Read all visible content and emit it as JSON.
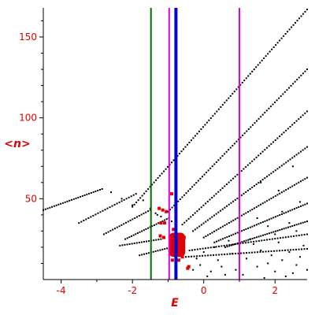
{
  "chart_data": {
    "type": "scatter",
    "xlabel": "E",
    "ylabel": "<n>",
    "xlim": [
      -4.5,
      2.9
    ],
    "ylim": [
      0,
      168
    ],
    "x_ticks": [
      -4,
      -2,
      0,
      2
    ],
    "x_tick_labels": [
      "-4",
      "-2",
      "0",
      "2"
    ],
    "y_ticks": [
      50,
      100,
      150
    ],
    "y_tick_labels": [
      "50",
      "100",
      "150"
    ],
    "grid": false,
    "colors": {
      "axis_text": "#e00000",
      "points": "#000000",
      "highlight": "#e00000",
      "line_green": "#007000",
      "line_magenta": "#e000e0",
      "line_blue": "#0000e0"
    },
    "vertical_lines": [
      {
        "x": -1.48,
        "color": "#007000",
        "width": 2
      },
      {
        "x": -0.97,
        "color": "#e000e0",
        "width": 2
      },
      {
        "x": -0.78,
        "color": "#0000e0",
        "width": 4
      },
      {
        "x": 1.0,
        "color": "#e000e0",
        "width": 2
      }
    ],
    "black_curves": [
      {
        "x0": -4.5,
        "y0": 43,
        "x1": -2.85,
        "y1": 56,
        "points": 28,
        "tail": [
          [
            -2.6,
            54
          ],
          [
            -2.3,
            50
          ],
          [
            -2.0,
            46
          ]
        ]
      },
      {
        "x0": -3.5,
        "y0": 35,
        "x1": -1.9,
        "y1": 53,
        "points": 25,
        "tail": [
          [
            -1.7,
            49
          ],
          [
            -1.5,
            44
          ],
          [
            -1.3,
            40
          ]
        ]
      },
      {
        "x0": -2.8,
        "y0": 28,
        "x1": -1.5,
        "y1": 43,
        "points": 22,
        "tail": [
          [
            -1.35,
            41
          ],
          [
            -1.2,
            39
          ]
        ]
      },
      {
        "x0": -2.2,
        "y0": 25,
        "x1": -0.98,
        "y1": 38,
        "points": 22,
        "tail": [
          [
            -0.9,
            36
          ],
          [
            -0.8,
            34
          ]
        ]
      },
      {
        "x0": -2.35,
        "y0": 21,
        "x1": -1.2,
        "y1": 25,
        "points": 18,
        "tail": []
      },
      {
        "x0": -1.8,
        "y0": 15,
        "x1": -0.9,
        "y1": 20,
        "points": 15,
        "tail": []
      },
      {
        "x0": -2.0,
        "y0": 45,
        "x1": 2.9,
        "y1": 167,
        "points": 90,
        "tail": []
      },
      {
        "x0": -1.0,
        "y0": 42,
        "x1": 2.9,
        "y1": 130,
        "points": 70,
        "tail": []
      },
      {
        "x0": -0.6,
        "y0": 34,
        "x1": 2.9,
        "y1": 104,
        "points": 60,
        "tail": []
      },
      {
        "x0": -0.3,
        "y0": 30,
        "x1": 2.9,
        "y1": 82,
        "points": 55,
        "tail": []
      },
      {
        "x0": 0.0,
        "y0": 26,
        "x1": 2.9,
        "y1": 63,
        "points": 50,
        "tail": []
      },
      {
        "x0": 0.3,
        "y0": 23,
        "x1": 2.9,
        "y1": 47,
        "points": 45,
        "tail": []
      },
      {
        "x0": 0.6,
        "y0": 20,
        "x1": 2.9,
        "y1": 36,
        "points": 40,
        "tail": []
      },
      {
        "x0": -0.4,
        "y0": 18,
        "x1": 2.9,
        "y1": 28,
        "points": 45,
        "tail": []
      },
      {
        "x0": -0.5,
        "y0": 14,
        "x1": 2.9,
        "y1": 19,
        "points": 45,
        "tail": []
      }
    ],
    "black_scatter": [
      [
        1.8,
        10
      ],
      [
        2.2,
        12
      ],
      [
        2.6,
        9
      ],
      [
        2.0,
        5
      ],
      [
        1.5,
        8
      ],
      [
        2.5,
        4
      ],
      [
        1.2,
        13
      ],
      [
        2.7,
        14
      ],
      [
        1.9,
        15
      ],
      [
        0.9,
        6
      ],
      [
        1.1,
        3
      ],
      [
        0.5,
        8
      ],
      [
        0.2,
        5
      ],
      [
        2.4,
        17
      ],
      [
        1.6,
        18
      ],
      [
        2.8,
        21
      ],
      [
        2.1,
        23
      ],
      [
        1.4,
        22
      ],
      [
        0.8,
        16
      ],
      [
        0.4,
        12
      ],
      [
        -0.1,
        9
      ],
      [
        -0.3,
        6
      ],
      [
        0.1,
        2
      ],
      [
        2.3,
        2
      ],
      [
        1.7,
        1
      ],
      [
        2.9,
        6
      ],
      [
        1.3,
        25
      ],
      [
        2.0,
        28
      ],
      [
        2.6,
        30
      ],
      [
        1.0,
        27
      ],
      [
        0.7,
        24
      ],
      [
        2.4,
        35
      ],
      [
        1.8,
        33
      ],
      [
        2.2,
        42
      ],
      [
        1.5,
        38
      ],
      [
        1.0,
        36
      ],
      [
        2.7,
        48
      ],
      [
        2.1,
        55
      ],
      [
        1.6,
        60
      ],
      [
        2.5,
        70
      ],
      [
        0.6,
        3
      ],
      [
        -0.2,
        13
      ],
      [
        0.0,
        17
      ],
      [
        0.3,
        20
      ]
    ],
    "red_blob": {
      "x_min": -0.98,
      "x_max": -0.52,
      "y_min": 14,
      "y_max": 29
    },
    "red_scatter": [
      [
        -0.9,
        53
      ],
      [
        -1.25,
        44
      ],
      [
        -1.15,
        43
      ],
      [
        -1.05,
        42
      ],
      [
        -1.2,
        35
      ],
      [
        -1.1,
        35
      ],
      [
        -1.12,
        26
      ],
      [
        -1.22,
        27
      ],
      [
        -0.85,
        31
      ],
      [
        -0.95,
        18
      ],
      [
        -0.62,
        22
      ],
      [
        -0.42,
        8
      ],
      [
        -0.45,
        7
      ],
      [
        -0.55,
        26
      ],
      [
        -0.65,
        18
      ],
      [
        -0.8,
        16
      ],
      [
        -0.88,
        12
      ],
      [
        -0.7,
        12
      ],
      [
        -0.6,
        14
      ]
    ]
  }
}
